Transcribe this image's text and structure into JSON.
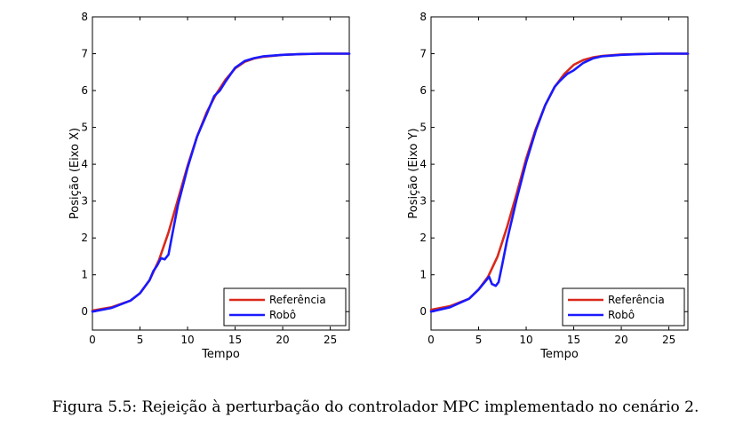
{
  "caption": "Figura 5.5: Rejeição à perturbação do controlador MPC implementado no cenário 2.",
  "colors": {
    "reference": "#d9291c",
    "robot": "#1a1aff",
    "axis": "#000000"
  },
  "chart_data": [
    {
      "type": "line",
      "xlabel": "Tempo",
      "ylabel": "Posição (Eixo X)",
      "xlim": [
        0,
        27
      ],
      "ylim": [
        -0.5,
        8
      ],
      "xticks": [
        0,
        5,
        10,
        15,
        20,
        25
      ],
      "yticks": [
        0,
        1,
        2,
        3,
        4,
        5,
        6,
        7,
        8
      ],
      "legend_position": "bottom-right",
      "series": [
        {
          "name": "Referência",
          "x": [
            0,
            2,
            4,
            5,
            6,
            7,
            8,
            9,
            10,
            11,
            12,
            13,
            14,
            15,
            16,
            17,
            18,
            20,
            22,
            24,
            27
          ],
          "y": [
            0.03,
            0.12,
            0.3,
            0.5,
            0.85,
            1.4,
            2.15,
            3.05,
            3.95,
            4.75,
            5.4,
            5.9,
            6.3,
            6.6,
            6.78,
            6.87,
            6.92,
            6.97,
            6.99,
            7.0,
            7.0
          ]
        },
        {
          "name": "Robô",
          "x": [
            0,
            2,
            4,
            5,
            6,
            6.4,
            6.8,
            7.2,
            7.6,
            8.0,
            8.4,
            9,
            10,
            11,
            12,
            12.8,
            13.4,
            14,
            15,
            16,
            17,
            18,
            20,
            22,
            24,
            27
          ],
          "y": [
            0.0,
            0.1,
            0.3,
            0.5,
            0.85,
            1.1,
            1.25,
            1.45,
            1.42,
            1.55,
            2.1,
            2.9,
            3.9,
            4.75,
            5.35,
            5.85,
            6.0,
            6.25,
            6.62,
            6.8,
            6.88,
            6.93,
            6.97,
            6.99,
            7.0,
            7.0
          ]
        }
      ]
    },
    {
      "type": "line",
      "xlabel": "Tempo",
      "ylabel": "Posição (Eixo Y)",
      "xlim": [
        0,
        27
      ],
      "ylim": [
        -0.5,
        8
      ],
      "xticks": [
        0,
        5,
        10,
        15,
        20,
        25
      ],
      "yticks": [
        0,
        1,
        2,
        3,
        4,
        5,
        6,
        7,
        8
      ],
      "legend_position": "bottom-right",
      "series": [
        {
          "name": "Referência",
          "x": [
            0,
            2,
            4,
            5,
            6,
            7,
            8,
            9,
            10,
            11,
            12,
            13,
            14,
            15,
            16,
            17,
            18,
            20,
            22,
            24,
            27
          ],
          "y": [
            0.05,
            0.15,
            0.35,
            0.6,
            0.95,
            1.5,
            2.3,
            3.2,
            4.15,
            4.95,
            5.6,
            6.1,
            6.45,
            6.7,
            6.83,
            6.9,
            6.94,
            6.98,
            6.99,
            7.0,
            7.0
          ]
        },
        {
          "name": "Robô",
          "x": [
            0,
            2,
            4,
            5,
            5.8,
            6.1,
            6.4,
            6.8,
            7.1,
            7.5,
            8.0,
            8.5,
            9,
            10,
            11,
            12,
            13,
            13.5,
            13.9,
            14.3,
            15,
            16,
            17,
            18,
            20,
            22,
            24,
            27
          ],
          "y": [
            0.0,
            0.12,
            0.35,
            0.6,
            0.85,
            0.95,
            0.75,
            0.7,
            0.8,
            1.3,
            1.95,
            2.5,
            3.05,
            4.05,
            4.9,
            5.6,
            6.1,
            6.25,
            6.35,
            6.45,
            6.55,
            6.75,
            6.87,
            6.93,
            6.97,
            6.99,
            7.0,
            7.0
          ]
        }
      ]
    }
  ]
}
